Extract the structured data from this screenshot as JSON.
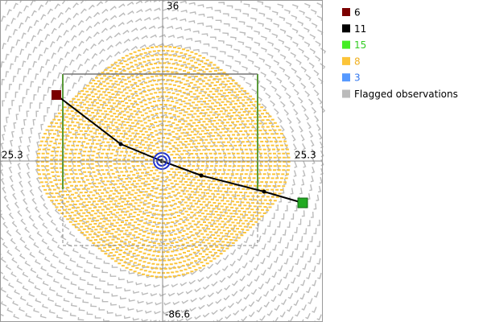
{
  "axis_labels": {
    "top": "36",
    "bottom": "-86.6",
    "left": "25.3",
    "right": "25.3"
  },
  "legend": [
    {
      "label": "6",
      "color": "#7b0000",
      "text_color": "#000000"
    },
    {
      "label": "11",
      "color": "#000000",
      "text_color": "#000000"
    },
    {
      "label": "15",
      "color": "#44ee22",
      "text_color": "#33cc22"
    },
    {
      "label": "8",
      "color": "#fcc438",
      "text_color": "#f0b020"
    },
    {
      "label": "3",
      "color": "#5599ff",
      "text_color": "#3377ee"
    },
    {
      "label": "Flagged observations",
      "color": "#bbbbbb",
      "text_color": "#000000"
    }
  ]
}
